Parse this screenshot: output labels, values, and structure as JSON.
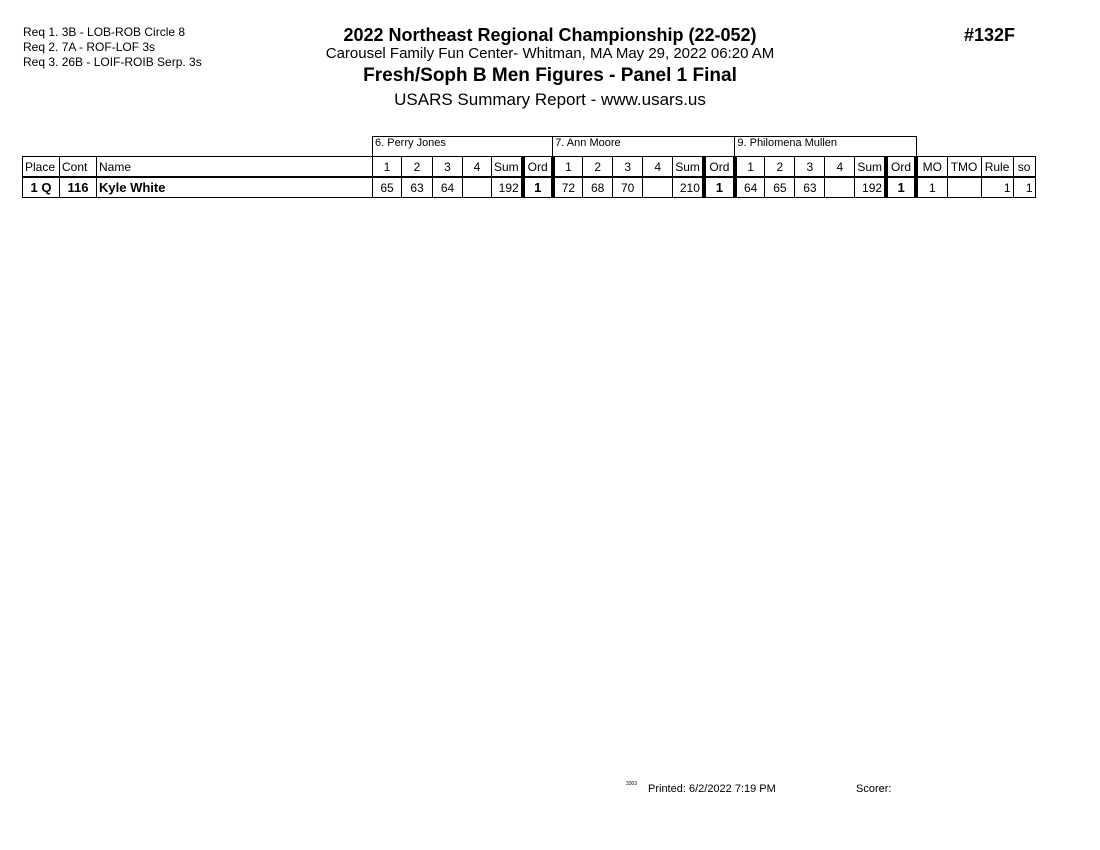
{
  "requirements": [
    "Req  1.  3B - LOB-ROB Circle 8",
    "Req  2.  7A - ROF-LOF 3s",
    "Req  3.  26B - LOIF-ROIB Serp. 3s"
  ],
  "header": {
    "title": "2022 Northeast Regional Championship (22-052)",
    "location": "Carousel Family Fun Center- Whitman, MA  May 29, 2022  06:20 AM",
    "event": "Fresh/Soph B Men Figures - Panel 1 Final",
    "report": "USARS Summary Report - www.usars.us",
    "event_number": "#132F"
  },
  "judges": [
    "6.  Perry Jones",
    "7.  Ann  Moore",
    "9.  Philomena Mullen"
  ],
  "columns": {
    "place": "Place",
    "cont": "Cont",
    "name": "Name",
    "f1": "1",
    "f2": "2",
    "f3": "3",
    "f4": "4",
    "sum": "Sum",
    "ord": "Ord",
    "mo": "MO",
    "tmo": "TMO",
    "rule": "Rule",
    "so": "so"
  },
  "rows": [
    {
      "place": "1 Q",
      "cont": "116",
      "name": "Kyle White",
      "judges": [
        {
          "s1": "65",
          "s2": "63",
          "s3": "64",
          "s4": "",
          "sum": "192",
          "ord": "1"
        },
        {
          "s1": "72",
          "s2": "68",
          "s3": "70",
          "s4": "",
          "sum": "210",
          "ord": "1"
        },
        {
          "s1": "64",
          "s2": "65",
          "s3": "63",
          "s4": "",
          "sum": "192",
          "ord": "1"
        }
      ],
      "mo": "1",
      "tmo": "",
      "rule": "1",
      "so": "1"
    }
  ],
  "footer": {
    "version": "3303",
    "printed": "Printed:  6/2/2022  7:19 PM",
    "scorer": "Scorer:"
  }
}
